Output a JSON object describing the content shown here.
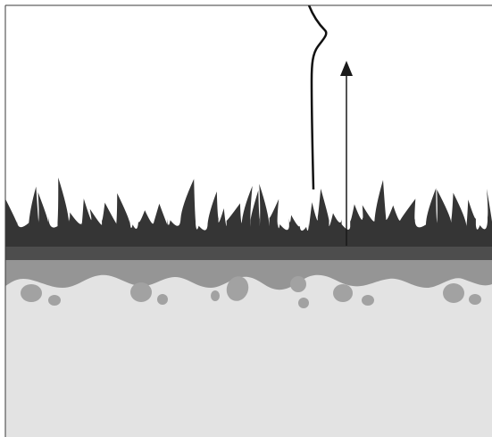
{
  "diagram": {
    "labels": [],
    "elements": {
      "background": "white-sky",
      "grass_layer": "grass-blades",
      "thatch_layer": "dark-band",
      "topsoil_layer": "wavy-gray-soil",
      "subsoil_layer": "light-gray-subsoil",
      "stones": "embedded-stones",
      "wavy_line": "wavy-vertical-line",
      "arrow": "upward-arrow"
    }
  },
  "colors": {
    "sky": "#ffffff",
    "grass": "#353535",
    "thatch": "#4d4d4d",
    "topsoil": "#959595",
    "subsoil": "#e3e3e3",
    "stone": "#a2a2a2",
    "line": "#111111",
    "border": "#3a3a3a"
  }
}
